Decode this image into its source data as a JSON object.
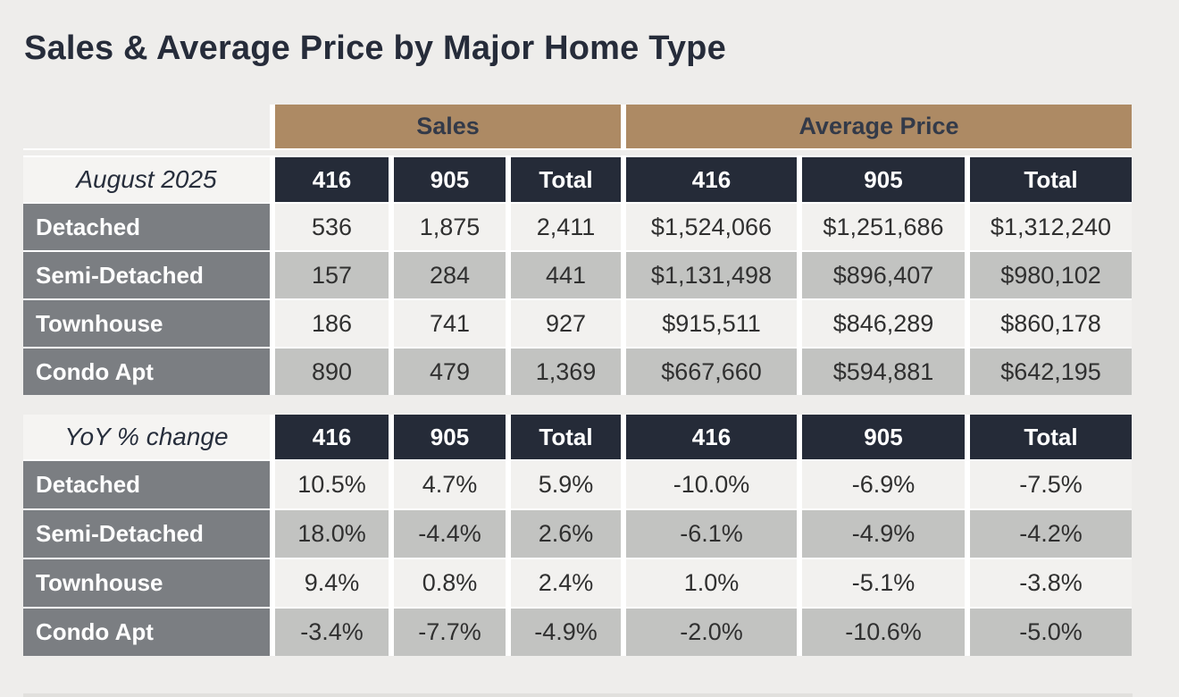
{
  "title": "Sales & Average Price by Major Home Type",
  "colors": {
    "background": "#eeedeb",
    "band_tan": "#ad8a64",
    "header_navy": "#252b38",
    "row_label_gray": "#7b7e82",
    "row_light": "#f2f1ef",
    "row_gray": "#c2c3c1",
    "title_text": "#262c3a",
    "header_text": "#ffffff"
  },
  "group_headers": {
    "sales": "Sales",
    "average_price": "Average Price"
  },
  "column_headers": [
    "416",
    "905",
    "Total"
  ],
  "table1": {
    "period_label": "August 2025",
    "rows": [
      {
        "label": "Detached",
        "sales": [
          "536",
          "1,875",
          "2,411"
        ],
        "avg_price": [
          "$1,524,066",
          "$1,251,686",
          "$1,312,240"
        ]
      },
      {
        "label": "Semi-Detached",
        "sales": [
          "157",
          "284",
          "441"
        ],
        "avg_price": [
          "$1,131,498",
          "$896,407",
          "$980,102"
        ]
      },
      {
        "label": "Townhouse",
        "sales": [
          "186",
          "741",
          "927"
        ],
        "avg_price": [
          "$915,511",
          "$846,289",
          "$860,178"
        ]
      },
      {
        "label": "Condo Apt",
        "sales": [
          "890",
          "479",
          "1,369"
        ],
        "avg_price": [
          "$667,660",
          "$594,881",
          "$642,195"
        ]
      }
    ]
  },
  "table2": {
    "period_label": "YoY % change",
    "rows": [
      {
        "label": "Detached",
        "sales": [
          "10.5%",
          "4.7%",
          "5.9%"
        ],
        "avg_price": [
          "-10.0%",
          "-6.9%",
          "-7.5%"
        ]
      },
      {
        "label": "Semi-Detached",
        "sales": [
          "18.0%",
          "-4.4%",
          "2.6%"
        ],
        "avg_price": [
          "-6.1%",
          "-4.9%",
          "-4.2%"
        ]
      },
      {
        "label": "Townhouse",
        "sales": [
          "9.4%",
          "0.8%",
          "2.4%"
        ],
        "avg_price": [
          "1.0%",
          "-5.1%",
          "-3.8%"
        ]
      },
      {
        "label": "Condo Apt",
        "sales": [
          "-3.4%",
          "-7.7%",
          "-4.9%"
        ],
        "avg_price": [
          "-2.0%",
          "-10.6%",
          "-5.0%"
        ]
      }
    ]
  }
}
